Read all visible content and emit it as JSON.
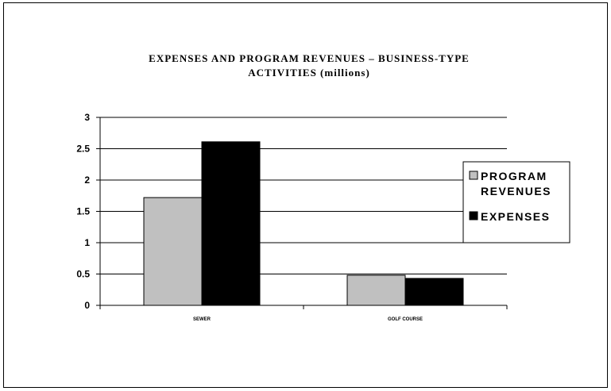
{
  "chart_data": {
    "type": "bar",
    "title_lines": [
      "EXPENSES AND PROGRAM REVENUES – BUSINESS-TYPE",
      "ACTIVITIES (millions)"
    ],
    "categories": [
      "SEWER",
      "GOLF COURSE"
    ],
    "series": [
      {
        "name_lines": [
          "PROGRAM",
          "REVENUES"
        ],
        "color": "#c0c0c0",
        "values": [
          1.72,
          0.48
        ]
      },
      {
        "name_lines": [
          "EXPENSES"
        ],
        "color": "#000000",
        "values": [
          2.61,
          0.43
        ]
      }
    ],
    "yticks": [
      "0",
      "0.5",
      "1",
      "1.5",
      "2",
      "2.5",
      "3"
    ],
    "ylim": [
      0,
      3
    ],
    "grid": true,
    "legend_position": "right"
  }
}
